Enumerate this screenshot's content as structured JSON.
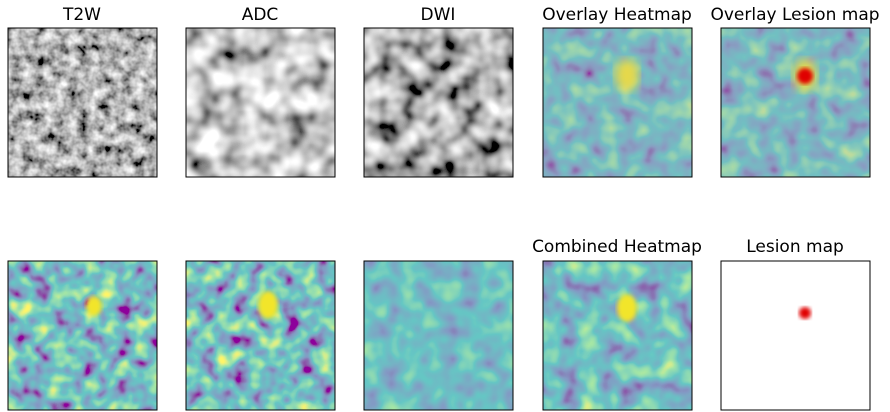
{
  "top_row": {
    "titles": [
      "T2W",
      "ADC",
      "DWI",
      "Overlay Heatmap",
      "Overlay Lesion map"
    ]
  },
  "bottom_row": {
    "titles": [
      "Combined Heatmap",
      "Lesion map"
    ]
  }
}
